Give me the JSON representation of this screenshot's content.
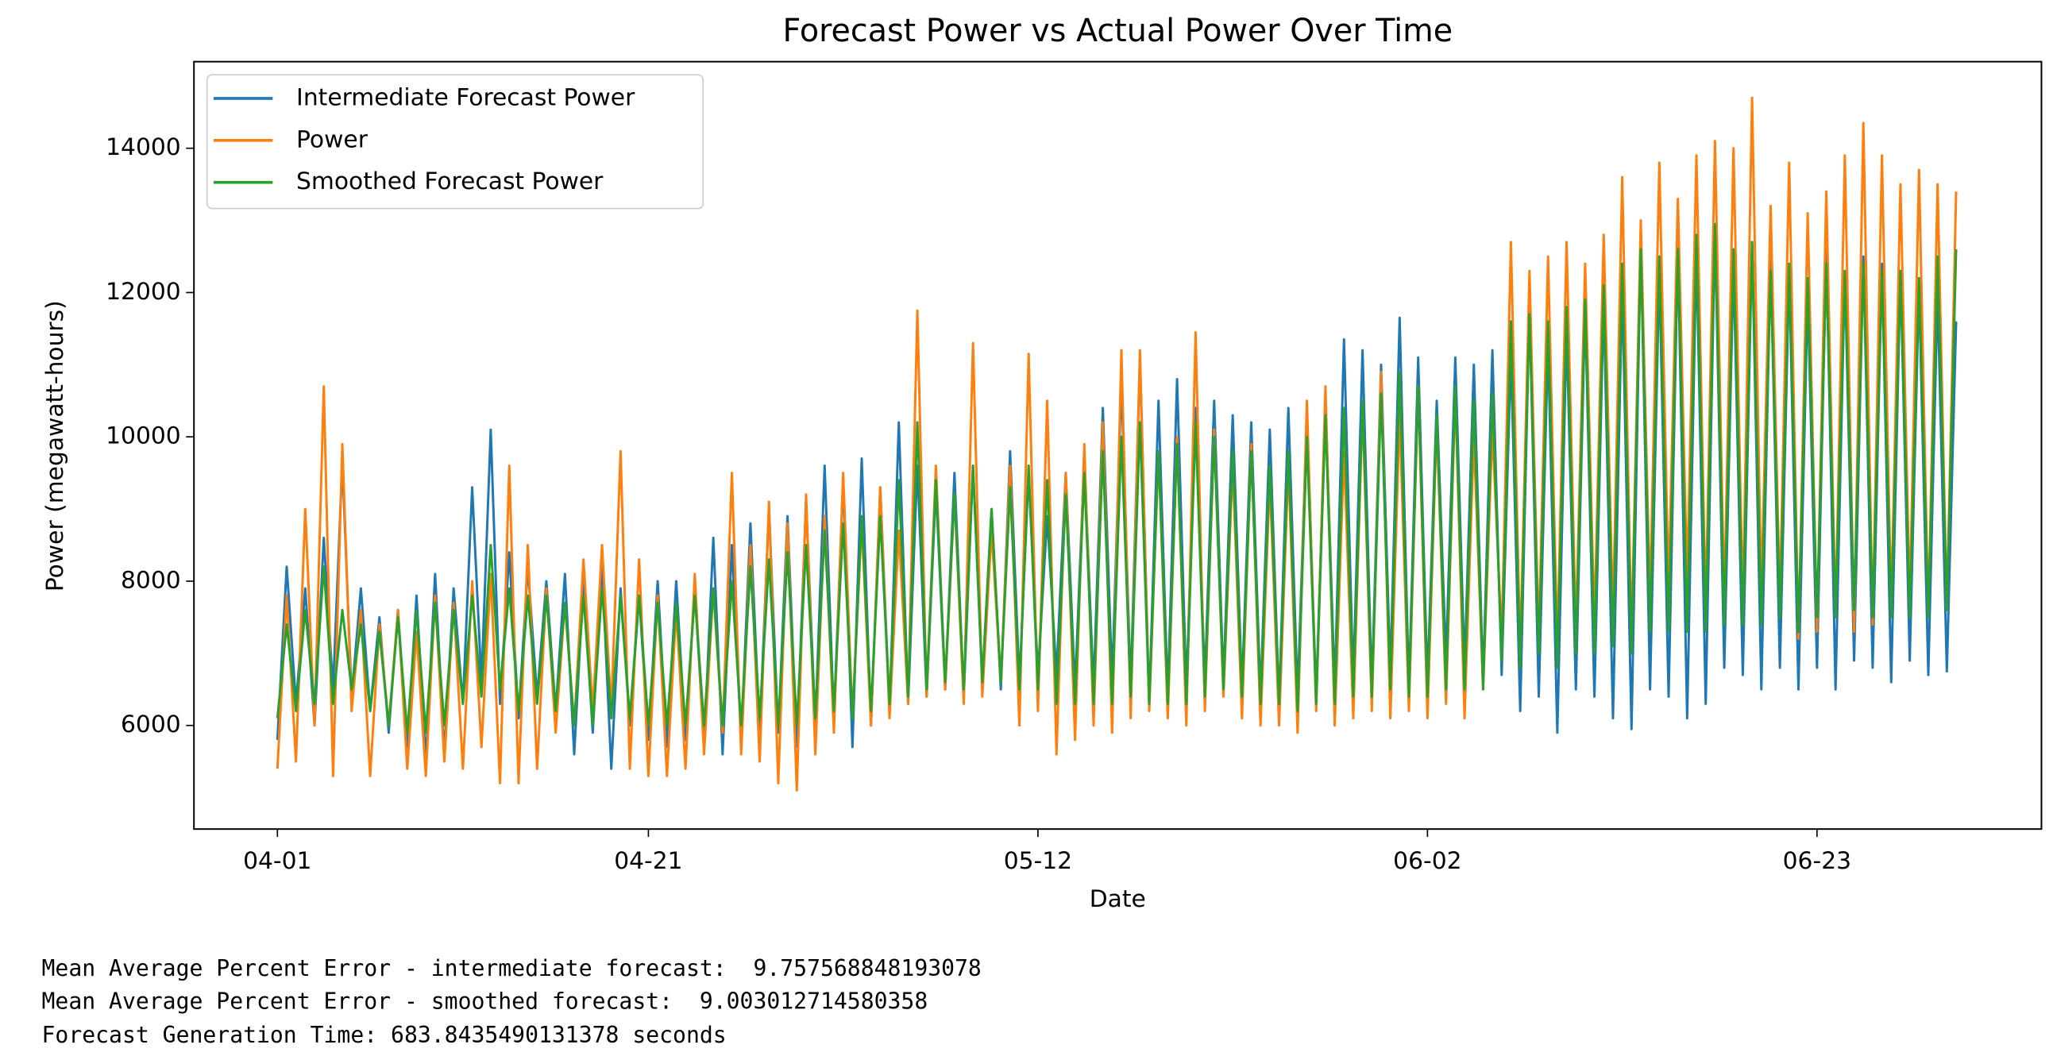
{
  "chart_data": {
    "type": "line",
    "title": "Forecast Power vs Actual Power Over Time",
    "x_label": "Date",
    "y_label": "Power (megawatt-hours)",
    "xlim": [
      -4.5,
      95.1
    ],
    "ylim": [
      4564,
      15200
    ],
    "xticks": [
      {
        "value": 0,
        "label": "04-01"
      },
      {
        "value": 20,
        "label": "04-21"
      },
      {
        "value": 41,
        "label": "05-12"
      },
      {
        "value": 62,
        "label": "06-02"
      },
      {
        "value": 83,
        "label": "06-23"
      }
    ],
    "yticks": [
      6000,
      8000,
      10000,
      12000,
      14000
    ],
    "grid": false,
    "legend": "upper left",
    "x": [
      0,
      0.5,
      1,
      1.5,
      2,
      2.5,
      3,
      3.5,
      4,
      4.5,
      5,
      5.5,
      6,
      6.5,
      7,
      7.5,
      8,
      8.5,
      9,
      9.5,
      10,
      10.5,
      11,
      11.5,
      12,
      12.5,
      13,
      13.5,
      14,
      14.5,
      15,
      15.5,
      16,
      16.5,
      17,
      17.5,
      18,
      18.5,
      19,
      19.5,
      20,
      20.5,
      21,
      21.5,
      22,
      22.5,
      23,
      23.5,
      24,
      24.5,
      25,
      25.5,
      26,
      26.5,
      27,
      27.5,
      28,
      28.5,
      29,
      29.5,
      30,
      30.5,
      31,
      31.5,
      32,
      32.5,
      33,
      33.5,
      34,
      34.5,
      35,
      35.5,
      36,
      36.5,
      37,
      37.5,
      38,
      38.5,
      39,
      39.5,
      40,
      40.5,
      41,
      41.5,
      42,
      42.5,
      43,
      43.5,
      44,
      44.5,
      45,
      45.5,
      46,
      46.5,
      47,
      47.5,
      48,
      48.5,
      49,
      49.5,
      50,
      50.5,
      51,
      51.5,
      52,
      52.5,
      53,
      53.5,
      54,
      54.5,
      55,
      55.5,
      56,
      56.5,
      57,
      57.5,
      58,
      58.5,
      59,
      59.5,
      60,
      60.5,
      61,
      61.5,
      62,
      62.5,
      63,
      63.5,
      64,
      64.5,
      65,
      65.5,
      66,
      66.5,
      67,
      67.5,
      68,
      68.5,
      69,
      69.5,
      70,
      70.5,
      71,
      71.5,
      72,
      72.5,
      73,
      73.5,
      74,
      74.5,
      75,
      75.5,
      76,
      76.5,
      77,
      77.5,
      78,
      78.5,
      79,
      79.5,
      80,
      80.5,
      81,
      81.5,
      82,
      82.5,
      83,
      83.5,
      84,
      84.5,
      85,
      85.5,
      86,
      86.5,
      87,
      87.5,
      88,
      88.5,
      89,
      89.5,
      90,
      90.5
    ],
    "series": [
      {
        "name": "Intermediate Forecast Power",
        "color": "#1f77b4",
        "values": [
          5800,
          8200,
          6300,
          7900,
          6000,
          8600,
          6500,
          9650,
          6400,
          7900,
          6200,
          7500,
          5900,
          7600,
          5700,
          7800,
          5500,
          8100,
          5600,
          7900,
          6300,
          9300,
          6600,
          10100,
          6300,
          8400,
          6100,
          8200,
          6400,
          8000,
          6200,
          8100,
          5600,
          8000,
          5900,
          8200,
          5400,
          7900,
          6000,
          7800,
          5800,
          8000,
          5700,
          8000,
          5800,
          7900,
          5700,
          8600,
          5600,
          8500,
          5800,
          8800,
          5900,
          9000,
          5900,
          8900,
          5700,
          9100,
          6000,
          9600,
          6100,
          9400,
          5700,
          9700,
          6000,
          9300,
          6200,
          10200,
          6300,
          9600,
          6400,
          9300,
          6500,
          9500,
          6400,
          9600,
          6600,
          9000,
          6500,
          9800,
          6600,
          9500,
          6700,
          8900,
          6700,
          9500,
          6500,
          9700,
          6500,
          10400,
          6600,
          10800,
          6500,
          11100,
          6300,
          10500,
          6400,
          10800,
          6500,
          10400,
          6600,
          10500,
          6600,
          10300,
          6500,
          10200,
          6400,
          10100,
          6300,
          10400,
          6400,
          10300,
          6400,
          10500,
          6500,
          11350,
          6600,
          11200,
          6500,
          11000,
          6700,
          11650,
          6500,
          11100,
          6600,
          10500,
          6900,
          11100,
          6800,
          11000,
          6600,
          11200,
          6700,
          11150,
          6200,
          11800,
          6400,
          11300,
          5900,
          11500,
          6500,
          11800,
          6400,
          11900,
          6100,
          12100,
          5950,
          12700,
          6500,
          12300,
          6400,
          12600,
          6100,
          12600,
          6300,
          12900,
          6800,
          12400,
          6700,
          12700,
          6500,
          12500,
          6800,
          12300,
          6500,
          12000,
          6800,
          12600,
          6500,
          12300,
          6900,
          12500,
          6800,
          12400,
          6600,
          12300,
          6900,
          12100,
          6700,
          12000,
          6750,
          11600
        ]
      },
      {
        "name": "Power",
        "color": "#ff7f0e",
        "values": [
          5400,
          7800,
          5500,
          9000,
          6000,
          10700,
          5300,
          9900,
          6200,
          7600,
          5300,
          7400,
          6000,
          7600,
          5400,
          7300,
          5300,
          7800,
          5500,
          7700,
          5400,
          8000,
          5700,
          8100,
          5200,
          9600,
          5200,
          8500,
          5400,
          7900,
          5900,
          7700,
          6000,
          8300,
          6200,
          8500,
          6200,
          9800,
          5400,
          8300,
          5300,
          7800,
          5300,
          7600,
          5400,
          8100,
          5600,
          7900,
          5900,
          9500,
          5600,
          8500,
          5500,
          9100,
          5200,
          8800,
          5100,
          9200,
          5600,
          8900,
          5900,
          9500,
          6100,
          8800,
          6000,
          9300,
          6100,
          8700,
          6300,
          11750,
          6400,
          9600,
          6500,
          9200,
          6300,
          11300,
          6400,
          8700,
          6600,
          9600,
          6000,
          11150,
          6200,
          10500,
          5600,
          9500,
          5800,
          9900,
          6000,
          10200,
          5900,
          11200,
          6100,
          11200,
          6200,
          9800,
          6100,
          10000,
          6000,
          11450,
          6200,
          10100,
          6400,
          9600,
          6100,
          9900,
          6000,
          9400,
          6000,
          9600,
          5900,
          10500,
          6200,
          10700,
          6000,
          9800,
          6100,
          10400,
          6200,
          10900,
          6100,
          10300,
          6200,
          10700,
          6100,
          10200,
          6300,
          10600,
          6100,
          10000,
          6500,
          10100,
          7200,
          12700,
          7000,
          12300,
          7200,
          12500,
          7100,
          12700,
          7300,
          12400,
          7400,
          12800,
          7500,
          13600,
          7200,
          13000,
          7700,
          13800,
          7900,
          13300,
          8000,
          13900,
          7600,
          14100,
          7700,
          14000,
          7600,
          14700,
          7800,
          13200,
          7700,
          13800,
          7200,
          13100,
          7300,
          13400,
          7500,
          13900,
          7300,
          14350,
          7400,
          13900,
          7600,
          13500,
          7700,
          13700,
          7500,
          13500,
          7600,
          13400
        ]
      },
      {
        "name": "Smoothed Forecast Power",
        "color": "#2ca02c",
        "values": [
          6100,
          7400,
          6200,
          7600,
          6300,
          8200,
          6300,
          7600,
          6500,
          7400,
          6200,
          7300,
          6000,
          7500,
          5900,
          7600,
          5900,
          7700,
          6000,
          7600,
          6300,
          7800,
          6400,
          8500,
          6500,
          7900,
          6200,
          7800,
          6300,
          7800,
          6200,
          7700,
          6000,
          7800,
          6000,
          7900,
          6100,
          7800,
          6100,
          7800,
          6000,
          7700,
          6000,
          7700,
          6000,
          7800,
          6000,
          7900,
          6000,
          8000,
          6000,
          8200,
          6100,
          8300,
          6000,
          8400,
          6000,
          8500,
          6100,
          8700,
          6200,
          8800,
          6100,
          8900,
          6200,
          8900,
          6300,
          9400,
          6400,
          10200,
          6500,
          9400,
          6600,
          9200,
          6500,
          9600,
          6600,
          9000,
          6600,
          9300,
          6500,
          9600,
          6500,
          9400,
          6300,
          9200,
          6300,
          9500,
          6300,
          9800,
          6300,
          10000,
          6400,
          10200,
          6300,
          9800,
          6300,
          9900,
          6300,
          10200,
          6400,
          10000,
          6500,
          9800,
          6400,
          9800,
          6300,
          9600,
          6300,
          9800,
          6200,
          10000,
          6300,
          10300,
          6300,
          10400,
          6400,
          10500,
          6400,
          10600,
          6500,
          10900,
          6400,
          10700,
          6400,
          10300,
          6500,
          10700,
          6500,
          10500,
          6500,
          10600,
          6900,
          11600,
          6800,
          11700,
          7000,
          11600,
          6800,
          11800,
          7000,
          11900,
          7000,
          12100,
          7100,
          12400,
          7000,
          12600,
          7300,
          12500,
          7300,
          12600,
          7300,
          12800,
          7300,
          12950,
          7400,
          12600,
          7400,
          12700,
          7400,
          12300,
          7500,
          12400,
          7300,
          12200,
          7500,
          12400,
          7500,
          12300,
          7600,
          12400,
          7500,
          12300,
          7500,
          12300,
          7500,
          12200,
          7500,
          12500,
          7600,
          12600
        ]
      }
    ]
  },
  "output": [
    "Mean Average Percent Error - intermediate forecast:  9.757568848193078",
    "Mean Average Percent Error - smoothed forecast:  9.003012714580358",
    "Forecast Generation Time: 683.8435490131378 seconds"
  ]
}
